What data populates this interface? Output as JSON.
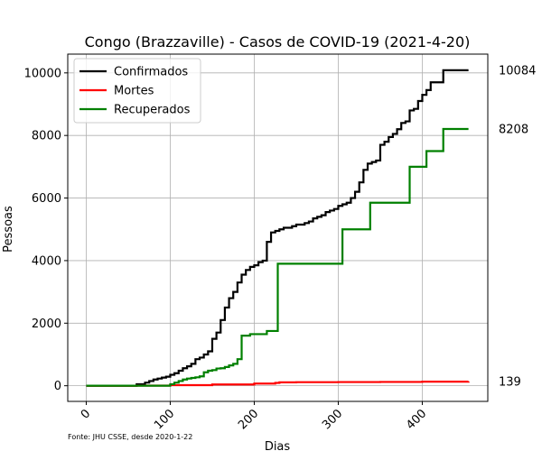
{
  "chart_data": {
    "type": "line",
    "title": "Congo (Brazzaville) - Casos de COVID-19 (2021-4-20)",
    "xlabel": "Dias",
    "ylabel": "Pessoas",
    "xlim": [
      -22,
      478
    ],
    "ylim": [
      -500,
      10600
    ],
    "xticks": [
      0,
      100,
      200,
      300,
      400
    ],
    "yticks": [
      0,
      2000,
      4000,
      6000,
      8000,
      10000
    ],
    "grid": true,
    "legend_position": "top-left",
    "source_note": "Fonte: JHU CSSE, desde 2020-1-22",
    "series": [
      {
        "name": "Confirmados",
        "color": "#000000",
        "end_label": "10084",
        "x": [
          0,
          60,
          70,
          75,
          80,
          85,
          90,
          95,
          100,
          105,
          110,
          115,
          120,
          125,
          130,
          135,
          140,
          145,
          150,
          155,
          160,
          165,
          170,
          175,
          180,
          185,
          190,
          195,
          200,
          205,
          210,
          215,
          220,
          225,
          230,
          235,
          240,
          245,
          250,
          255,
          260,
          265,
          270,
          275,
          280,
          285,
          290,
          295,
          300,
          305,
          310,
          315,
          320,
          325,
          330,
          335,
          340,
          345,
          350,
          355,
          360,
          365,
          370,
          375,
          380,
          385,
          390,
          395,
          400,
          405,
          410,
          415,
          420,
          425,
          430,
          435,
          440,
          445,
          450,
          455
        ],
        "y": [
          0,
          50,
          100,
          150,
          200,
          230,
          260,
          290,
          350,
          400,
          480,
          560,
          620,
          700,
          850,
          900,
          1000,
          1100,
          1500,
          1700,
          2100,
          2500,
          2800,
          3000,
          3300,
          3550,
          3700,
          3800,
          3850,
          3950,
          4000,
          4600,
          4900,
          4950,
          5000,
          5050,
          5050,
          5100,
          5150,
          5150,
          5200,
          5250,
          5350,
          5400,
          5450,
          5550,
          5600,
          5650,
          5750,
          5800,
          5850,
          6000,
          6200,
          6500,
          6900,
          7100,
          7150,
          7200,
          7700,
          7800,
          7950,
          8050,
          8200,
          8400,
          8450,
          8800,
          8850,
          9100,
          9300,
          9450,
          9700,
          9700,
          9700,
          10084,
          10084,
          10084,
          10084,
          10084,
          10084,
          10084
        ]
      },
      {
        "name": "Mortes",
        "color": "#ff0000",
        "end_label": "139",
        "x": [
          0,
          60,
          100,
          150,
          200,
          225,
          230,
          250,
          300,
          350,
          400,
          455
        ],
        "y": [
          0,
          5,
          20,
          40,
          70,
          90,
          110,
          115,
          118,
          122,
          130,
          139
        ]
      },
      {
        "name": "Recuperados",
        "color": "#008000",
        "end_label": "8208",
        "x": [
          0,
          90,
          100,
          105,
          110,
          115,
          120,
          125,
          130,
          135,
          140,
          145,
          150,
          155,
          160,
          165,
          170,
          175,
          180,
          185,
          190,
          195,
          215,
          228,
          305,
          338,
          385,
          405,
          425,
          455
        ],
        "y": [
          0,
          0,
          50,
          100,
          150,
          200,
          230,
          250,
          270,
          300,
          430,
          480,
          500,
          550,
          560,
          600,
          650,
          700,
          850,
          1600,
          1600,
          1650,
          1750,
          3900,
          5000,
          5850,
          7000,
          7500,
          8208,
          8208
        ]
      }
    ]
  }
}
